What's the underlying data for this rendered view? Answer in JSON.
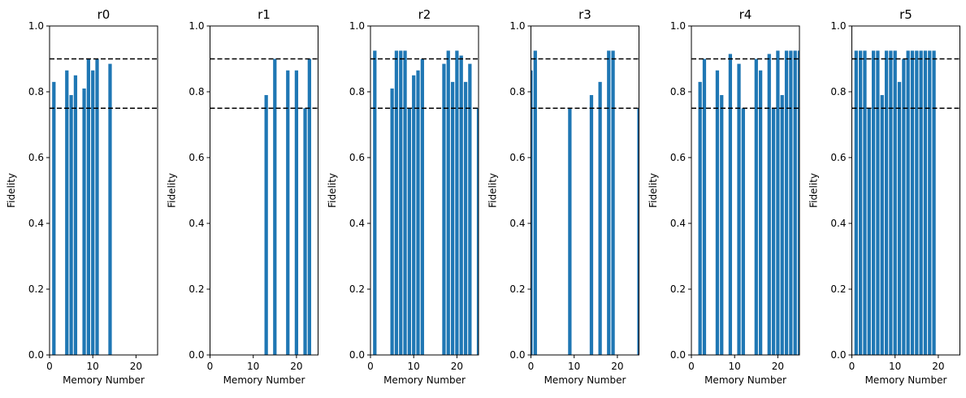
{
  "chart_data": [
    {
      "type": "bar",
      "title": "r0",
      "xlabel": "Memory Number",
      "ylabel": "Fidelity",
      "xlim": [
        0,
        25
      ],
      "ylim": [
        0,
        1
      ],
      "xticks": [
        0,
        10,
        20
      ],
      "xtick_labels": [
        "0",
        "10",
        "20"
      ],
      "yticks": [
        0,
        0.2,
        0.4,
        0.6,
        0.8,
        1.0
      ],
      "ytick_labels": [
        "0.0",
        "0.2",
        "0.4",
        "0.6",
        "0.8",
        "1.0"
      ],
      "hlines": [
        0.9,
        0.75
      ],
      "color": "#1f77b4",
      "x": [
        1,
        4,
        5,
        6,
        8,
        9,
        10,
        11,
        14
      ],
      "values": [
        0.83,
        0.865,
        0.79,
        0.85,
        0.81,
        0.9,
        0.865,
        0.9,
        0.885
      ]
    },
    {
      "type": "bar",
      "title": "r1",
      "xlabel": "Memory Number",
      "ylabel": "Fidelity",
      "xlim": [
        0,
        25
      ],
      "ylim": [
        0,
        1
      ],
      "xticks": [
        0,
        10,
        20
      ],
      "xtick_labels": [
        "0",
        "10",
        "20"
      ],
      "yticks": [
        0,
        0.2,
        0.4,
        0.6,
        0.8,
        1.0
      ],
      "ytick_labels": [
        "0.0",
        "0.2",
        "0.4",
        "0.6",
        "0.8",
        "1.0"
      ],
      "hlines": [
        0.9,
        0.75
      ],
      "color": "#1f77b4",
      "x": [
        13,
        15,
        18,
        20,
        22,
        23
      ],
      "values": [
        0.79,
        0.9,
        0.865,
        0.865,
        0.75,
        0.9
      ]
    },
    {
      "type": "bar",
      "title": "r2",
      "xlabel": "Memory Number",
      "ylabel": "Fidelity",
      "xlim": [
        0,
        25
      ],
      "ylim": [
        0,
        1
      ],
      "xticks": [
        0,
        10,
        20
      ],
      "xtick_labels": [
        "0",
        "10",
        "20"
      ],
      "yticks": [
        0,
        0.2,
        0.4,
        0.6,
        0.8,
        1.0
      ],
      "ytick_labels": [
        "0.0",
        "0.2",
        "0.4",
        "0.6",
        "0.8",
        "1.0"
      ],
      "hlines": [
        0.9,
        0.75
      ],
      "color": "#1f77b4",
      "x": [
        1,
        5,
        6,
        7,
        8,
        9,
        10,
        11,
        12,
        17,
        18,
        19,
        20,
        21,
        22,
        23,
        25
      ],
      "values": [
        0.925,
        0.81,
        0.925,
        0.925,
        0.925,
        0.75,
        0.85,
        0.865,
        0.9,
        0.885,
        0.925,
        0.83,
        0.925,
        0.91,
        0.83,
        0.885,
        0.75
      ]
    },
    {
      "type": "bar",
      "title": "r3",
      "xlabel": "Memory Number",
      "ylabel": "Fidelity",
      "xlim": [
        0,
        25
      ],
      "ylim": [
        0,
        1
      ],
      "xticks": [
        0,
        10,
        20
      ],
      "xtick_labels": [
        "0",
        "10",
        "20"
      ],
      "yticks": [
        0,
        0.2,
        0.4,
        0.6,
        0.8,
        1.0
      ],
      "ytick_labels": [
        "0.0",
        "0.2",
        "0.4",
        "0.6",
        "0.8",
        "1.0"
      ],
      "hlines": [
        0.9,
        0.75
      ],
      "color": "#1f77b4",
      "x": [
        0,
        1,
        9,
        14,
        16,
        18,
        19,
        25
      ],
      "values": [
        0.865,
        0.925,
        0.75,
        0.79,
        0.83,
        0.925,
        0.925,
        0.75
      ]
    },
    {
      "type": "bar",
      "title": "r4",
      "xlabel": "Memory Number",
      "ylabel": "Fidelity",
      "xlim": [
        0,
        25
      ],
      "ylim": [
        0,
        1
      ],
      "xticks": [
        0,
        10,
        20
      ],
      "xtick_labels": [
        "0",
        "10",
        "20"
      ],
      "yticks": [
        0,
        0.2,
        0.4,
        0.6,
        0.8,
        1.0
      ],
      "ytick_labels": [
        "0.0",
        "0.2",
        "0.4",
        "0.6",
        "0.8",
        "1.0"
      ],
      "hlines": [
        0.9,
        0.75
      ],
      "color": "#1f77b4",
      "x": [
        2,
        3,
        6,
        7,
        9,
        11,
        12,
        15,
        16,
        18,
        19,
        20,
        21,
        22,
        23,
        24,
        25
      ],
      "values": [
        0.83,
        0.9,
        0.865,
        0.79,
        0.915,
        0.885,
        0.75,
        0.9,
        0.865,
        0.915,
        0.75,
        0.925,
        0.79,
        0.925,
        0.925,
        0.925,
        0.925
      ]
    },
    {
      "type": "bar",
      "title": "r5",
      "xlabel": "Memory Number",
      "ylabel": "Fidelity",
      "xlim": [
        0,
        25
      ],
      "ylim": [
        0,
        1
      ],
      "xticks": [
        0,
        10,
        20
      ],
      "xtick_labels": [
        "0",
        "10",
        "20"
      ],
      "yticks": [
        0,
        0.2,
        0.4,
        0.6,
        0.8,
        1.0
      ],
      "ytick_labels": [
        "0.0",
        "0.2",
        "0.4",
        "0.6",
        "0.8",
        "1.0"
      ],
      "hlines": [
        0.9,
        0.75
      ],
      "color": "#1f77b4",
      "x": [
        1,
        2,
        3,
        4,
        5,
        6,
        7,
        8,
        9,
        10,
        11,
        12,
        13,
        14,
        15,
        16,
        17,
        18,
        19
      ],
      "values": [
        0.925,
        0.925,
        0.925,
        0.75,
        0.925,
        0.925,
        0.79,
        0.925,
        0.925,
        0.925,
        0.83,
        0.9,
        0.925,
        0.925,
        0.925,
        0.925,
        0.925,
        0.925,
        0.925
      ]
    }
  ]
}
